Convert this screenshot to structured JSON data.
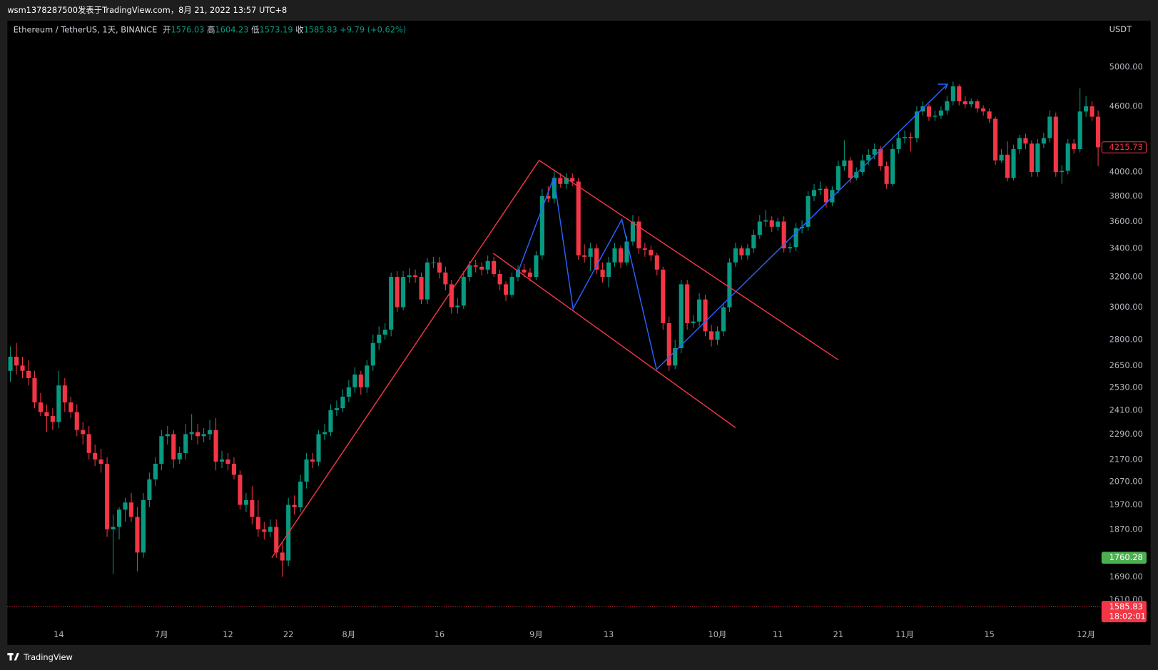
{
  "header": {
    "caption": "wsm1378287500发表于TradingView.com，8月 21, 2022 13:57 UTC+8"
  },
  "footer": {
    "brand": "TradingView"
  },
  "chart_data": {
    "type": "candlestick",
    "title": "Ethereum / TetherUS, 1天, BINANCE",
    "legend": {
      "open_label": "开",
      "open": 1576.03,
      "high_label": "高",
      "high": 1604.23,
      "low_label": "低",
      "low": 1573.19,
      "close_label": "收",
      "close": 1585.83,
      "change": "+9.79 (+0.62%)"
    },
    "currency": "USDT",
    "log_scale": true,
    "grid": false,
    "up_color": "#089981",
    "down_color": "#f23645",
    "ylim": [
      1533,
      5520
    ],
    "yticks": [
      {
        "value": 5000,
        "label": "5000.00"
      },
      {
        "value": 4600,
        "label": "4600.00"
      },
      {
        "value": 4000,
        "label": "4000.00"
      },
      {
        "value": 3800,
        "label": "3800.00"
      },
      {
        "value": 3600,
        "label": "3600.00"
      },
      {
        "value": 3400,
        "label": "3400.00"
      },
      {
        "value": 3200,
        "label": "3200.00"
      },
      {
        "value": 3000,
        "label": "3000.00"
      },
      {
        "value": 2800,
        "label": "2800.00"
      },
      {
        "value": 2650,
        "label": "2650.00"
      },
      {
        "value": 2530,
        "label": "2530.00"
      },
      {
        "value": 2410,
        "label": "2410.00"
      },
      {
        "value": 2290,
        "label": "2290.00"
      },
      {
        "value": 2170,
        "label": "2170.00"
      },
      {
        "value": 2070,
        "label": "2070.00"
      },
      {
        "value": 1970,
        "label": "1970.00"
      },
      {
        "value": 1870,
        "label": "1870.00"
      },
      {
        "value": 1690,
        "label": "1690.00"
      },
      {
        "value": 1610,
        "label": "1610.00"
      }
    ],
    "price_labels": [
      {
        "value": 4215.73,
        "color": "#f23645",
        "style": "outline"
      },
      {
        "value": 1760.28,
        "color": "#4caf50",
        "style": "fill"
      },
      {
        "value": 1585.83,
        "color": "#f23645",
        "style": "fill",
        "countdown": "18:02:01",
        "line": true
      }
    ],
    "categories": [
      null,
      null,
      null,
      null,
      null,
      null,
      null,
      null,
      "14",
      null,
      null,
      null,
      null,
      null,
      null,
      null,
      null,
      null,
      null,
      null,
      null,
      null,
      null,
      null,
      null,
      "7月",
      null,
      null,
      null,
      null,
      null,
      null,
      null,
      null,
      null,
      null,
      "12",
      null,
      null,
      null,
      null,
      null,
      null,
      null,
      null,
      null,
      "22",
      null,
      null,
      null,
      null,
      null,
      null,
      null,
      null,
      null,
      "8月",
      null,
      null,
      null,
      null,
      null,
      null,
      null,
      null,
      null,
      null,
      null,
      null,
      null,
      null,
      "16",
      null,
      null,
      null,
      null,
      null,
      null,
      null,
      null,
      null,
      null,
      null,
      null,
      null,
      null,
      null,
      "9月",
      null,
      null,
      null,
      null,
      null,
      null,
      null,
      null,
      null,
      null,
      null,
      "13",
      null,
      null,
      null,
      null,
      null,
      null,
      null,
      null,
      null,
      null,
      null,
      null,
      null,
      null,
      null,
      null,
      null,
      "10月",
      null,
      null,
      null,
      null,
      null,
      null,
      null,
      null,
      null,
      "11",
      null,
      null,
      null,
      null,
      null,
      null,
      null,
      null,
      null,
      "21",
      null,
      null,
      null,
      null,
      null,
      null,
      null,
      null,
      null,
      null,
      "11月",
      null,
      null,
      null,
      null,
      null,
      null,
      null,
      null,
      null,
      null,
      null,
      null,
      null,
      "15",
      null,
      null,
      null,
      null,
      null,
      null,
      null,
      null,
      null,
      null,
      null,
      null,
      null,
      null,
      null,
      "12月",
      null,
      null
    ],
    "open": [
      2620,
      2700,
      2650,
      2620,
      2580,
      2450,
      2400,
      2380,
      2350,
      2540,
      2450,
      2400,
      2310,
      2290,
      2200,
      2170,
      2150,
      1870,
      1880,
      1950,
      1980,
      1920,
      1780,
      1990,
      2080,
      2150,
      2280,
      2290,
      2170,
      2200,
      2290,
      2300,
      2280,
      2290,
      2310,
      2160,
      2170,
      2150,
      2100,
      1970,
      1990,
      1920,
      1870,
      1860,
      1880,
      1780,
      1750,
      1970,
      1960,
      2070,
      2170,
      2160,
      2290,
      2300,
      2410,
      2420,
      2480,
      2530,
      2600,
      2530,
      2650,
      2780,
      2830,
      2860,
      3200,
      3000,
      3200,
      3210,
      3200,
      3050,
      3300,
      3300,
      3230,
      3150,
      3000,
      3010,
      3200,
      3280,
      3270,
      3250,
      3310,
      3220,
      3150,
      3080,
      3200,
      3250,
      3230,
      3200,
      3350,
      3800,
      3780,
      3950,
      3900,
      3950,
      3920,
      3350,
      3340,
      3400,
      3250,
      3200,
      3300,
      3400,
      3300,
      3450,
      3600,
      3400,
      3390,
      3350,
      3250,
      2900,
      2650,
      2750,
      3150,
      2900,
      2910,
      3050,
      2850,
      2800,
      2850,
      3000,
      3300,
      3400,
      3350,
      3400,
      3500,
      3600,
      3610,
      3560,
      3600,
      3400,
      3410,
      3550,
      3560,
      3800,
      3850,
      3860,
      3750,
      3850,
      4050,
      4100,
      3950,
      4000,
      4100,
      4150,
      4200,
      4050,
      3900,
      4200,
      4300,
      4310,
      4300,
      4550,
      4600,
      4500,
      4510,
      4560,
      4650,
      4800,
      4650,
      4620,
      4650,
      4580,
      4550,
      4480,
      4100,
      4150,
      3950,
      4200,
      4300,
      4250,
      4000,
      4250,
      4300,
      4500,
      4000,
      4010,
      4250,
      4200,
      4550,
      4600,
      4500
    ],
    "high": [
      2760,
      2780,
      2700,
      2680,
      2620,
      2500,
      2440,
      2420,
      2620,
      2580,
      2480,
      2440,
      2350,
      2330,
      2240,
      2220,
      2180,
      1930,
      1960,
      2000,
      2020,
      1960,
      2020,
      2110,
      2180,
      2310,
      2330,
      2310,
      2230,
      2340,
      2390,
      2340,
      2320,
      2360,
      2370,
      2210,
      2200,
      2180,
      2120,
      2020,
      2050,
      1990,
      1900,
      1910,
      1910,
      1820,
      2000,
      2010,
      2100,
      2200,
      2200,
      2310,
      2340,
      2440,
      2460,
      2520,
      2570,
      2640,
      2620,
      2680,
      2830,
      2880,
      2900,
      3230,
      3240,
      3240,
      3260,
      3250,
      3230,
      3330,
      3340,
      3340,
      3270,
      3180,
      3060,
      3240,
      3310,
      3320,
      3300,
      3350,
      3340,
      3250,
      3170,
      3230,
      3280,
      3290,
      3260,
      3380,
      3860,
      3880,
      4020,
      3990,
      3990,
      3990,
      3950,
      3430,
      3440,
      3430,
      3300,
      3340,
      3440,
      3420,
      3490,
      3650,
      3640,
      3440,
      3420,
      3370,
      3270,
      2940,
      2800,
      3180,
      3180,
      2950,
      3090,
      3080,
      2890,
      2880,
      3030,
      3330,
      3440,
      3420,
      3430,
      3540,
      3650,
      3690,
      3640,
      3630,
      3640,
      3440,
      3590,
      3610,
      3840,
      3900,
      3920,
      3880,
      3880,
      4100,
      4280,
      4130,
      4040,
      4150,
      4200,
      4250,
      4230,
      4090,
      4250,
      4350,
      4370,
      4350,
      4600,
      4650,
      4620,
      4560,
      4600,
      4700,
      4850,
      4820,
      4700,
      4680,
      4670,
      4610,
      4580,
      4500,
      4200,
      4270,
      4240,
      4330,
      4340,
      4280,
      4290,
      4350,
      4560,
      4540,
      4060,
      4290,
      4290,
      4780,
      4700,
      4650,
      4560
    ],
    "low": [
      2560,
      2600,
      2580,
      2540,
      2420,
      2380,
      2300,
      2310,
      2320,
      2400,
      2370,
      2280,
      2240,
      2170,
      2140,
      2110,
      1840,
      1700,
      1830,
      1900,
      1900,
      1710,
      1760,
      1960,
      2050,
      2120,
      2240,
      2130,
      2150,
      2170,
      2260,
      2240,
      2250,
      2260,
      2120,
      2130,
      2120,
      2080,
      1950,
      1940,
      1890,
      1840,
      1830,
      1840,
      1760,
      1690,
      1730,
      1930,
      1940,
      2040,
      2130,
      2140,
      2260,
      2280,
      2380,
      2400,
      2450,
      2500,
      2490,
      2500,
      2620,
      2740,
      2800,
      2820,
      2970,
      2980,
      3160,
      3160,
      3020,
      3020,
      3260,
      3190,
      3110,
      2960,
      2960,
      2990,
      3170,
      3230,
      3210,
      3220,
      3200,
      3110,
      3040,
      3060,
      3170,
      3200,
      3170,
      3180,
      3320,
      3750,
      3740,
      3870,
      3860,
      3880,
      3320,
      3300,
      3240,
      3220,
      3160,
      3130,
      3270,
      3260,
      3280,
      3420,
      3360,
      3340,
      3310,
      3210,
      2860,
      2620,
      2630,
      2720,
      2860,
      2870,
      2880,
      2820,
      2760,
      2770,
      2820,
      2970,
      3270,
      3320,
      3320,
      3370,
      3470,
      3560,
      3520,
      3530,
      3370,
      3370,
      3380,
      3510,
      3530,
      3760,
      3810,
      3710,
      3720,
      3820,
      4010,
      3910,
      3930,
      3970,
      4060,
      4110,
      4010,
      3860,
      3880,
      4160,
      4250,
      4180,
      4260,
      4510,
      4460,
      4460,
      4480,
      4520,
      4610,
      4610,
      4580,
      4590,
      4540,
      4510,
      4440,
      4060,
      4080,
      3920,
      3930,
      4160,
      4200,
      3960,
      3960,
      4210,
      4260,
      3960,
      3900,
      3980,
      4160,
      4170,
      4500,
      4460,
      4050
    ],
    "close": [
      2700,
      2650,
      2620,
      2580,
      2450,
      2400,
      2380,
      2350,
      2540,
      2450,
      2400,
      2310,
      2290,
      2200,
      2170,
      2150,
      1870,
      1880,
      1950,
      1980,
      1920,
      1780,
      1990,
      2080,
      2150,
      2280,
      2290,
      2170,
      2200,
      2290,
      2300,
      2280,
      2290,
      2310,
      2160,
      2170,
      2150,
      2100,
      1970,
      1990,
      1920,
      1870,
      1860,
      1880,
      1780,
      1750,
      1970,
      1960,
      2070,
      2170,
      2160,
      2290,
      2300,
      2410,
      2420,
      2480,
      2530,
      2600,
      2530,
      2650,
      2780,
      2830,
      2860,
      3200,
      3000,
      3200,
      3210,
      3200,
      3050,
      3300,
      3300,
      3230,
      3150,
      3000,
      3010,
      3200,
      3280,
      3270,
      3250,
      3310,
      3220,
      3150,
      3080,
      3200,
      3250,
      3230,
      3200,
      3350,
      3800,
      3780,
      3950,
      3900,
      3950,
      3920,
      3350,
      3340,
      3400,
      3250,
      3200,
      3300,
      3400,
      3300,
      3450,
      3600,
      3400,
      3390,
      3350,
      3250,
      2900,
      2650,
      2750,
      3150,
      2900,
      2910,
      3050,
      2850,
      2800,
      2850,
      3000,
      3300,
      3400,
      3350,
      3400,
      3500,
      3600,
      3610,
      3560,
      3600,
      3400,
      3410,
      3550,
      3560,
      3800,
      3850,
      3860,
      3750,
      3850,
      4050,
      4100,
      3950,
      4000,
      4100,
      4150,
      4200,
      4050,
      3900,
      4200,
      4300,
      4310,
      4300,
      4550,
      4600,
      4500,
      4510,
      4560,
      4650,
      4800,
      4650,
      4620,
      4650,
      4580,
      4550,
      4480,
      4100,
      4150,
      3950,
      4200,
      4300,
      4250,
      4000,
      4250,
      4300,
      4500,
      4000,
      4010,
      4250,
      4200,
      4550,
      4600,
      4500,
      4216
    ]
  }
}
